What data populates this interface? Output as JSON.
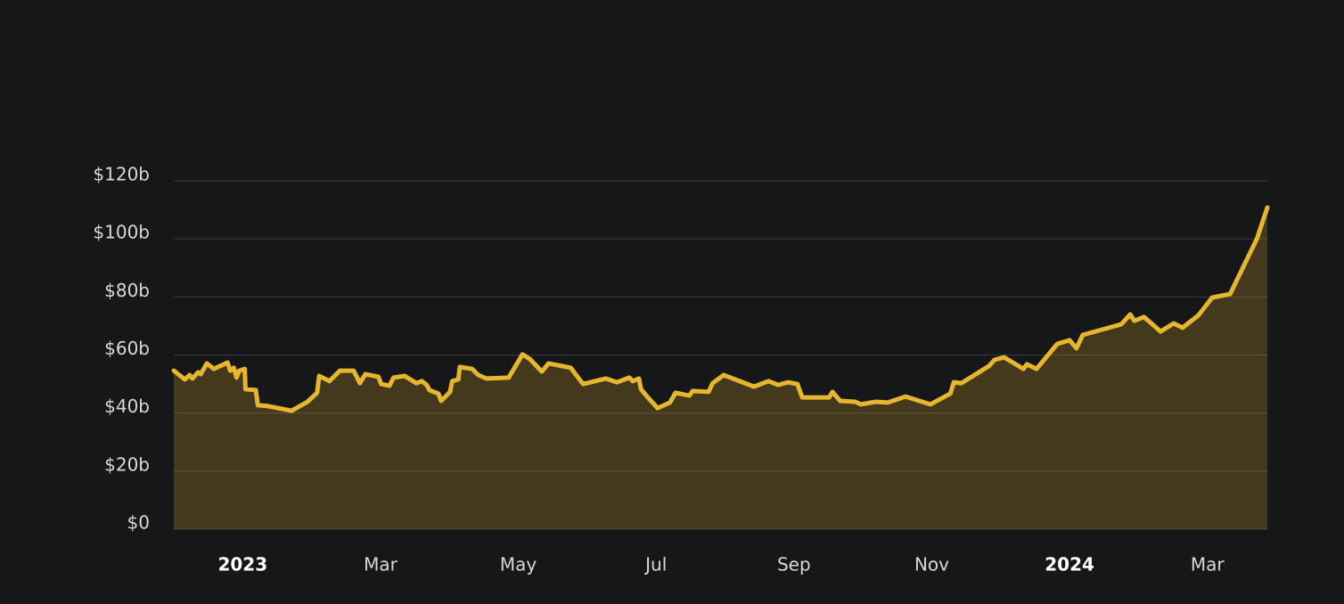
{
  "chart_data": {
    "type": "area",
    "series": [
      {
        "color": "#e6b62e",
        "x": [
          0.0,
          0.16,
          0.23,
          0.27,
          0.35,
          0.39,
          0.48,
          0.58,
          0.78,
          0.82,
          0.87,
          0.91,
          0.95,
          1.03,
          1.04,
          1.19,
          1.22,
          1.36,
          1.71,
          1.94,
          2.08,
          2.11,
          2.26,
          2.41,
          2.61,
          2.7,
          2.78,
          2.97,
          3.01,
          3.13,
          3.19,
          3.35,
          3.52,
          3.6,
          3.67,
          3.71,
          3.84,
          3.88,
          4.01,
          4.04,
          4.13,
          4.15,
          4.33,
          4.42,
          4.54,
          4.86,
          5.06,
          5.17,
          5.34,
          5.44,
          5.76,
          5.94,
          6.27,
          6.43,
          6.61,
          6.66,
          6.75,
          6.78,
          6.88,
          7.02,
          7.2,
          7.28,
          7.48,
          7.53,
          7.76,
          7.82,
          7.98,
          8.42,
          8.63,
          8.77,
          8.91,
          9.05,
          9.12,
          9.27,
          9.51,
          9.56,
          9.67,
          9.89,
          9.97,
          10.19,
          10.36,
          10.62,
          10.98,
          11.27,
          11.32,
          11.43,
          11.83,
          11.91,
          12.05,
          12.33,
          12.38,
          12.52,
          12.82,
          13.0,
          13.1,
          13.19,
          13.75,
          13.88,
          13.94,
          14.08,
          14.32,
          14.51,
          14.64,
          14.87,
          15.07,
          15.33,
          15.72,
          15.87
        ],
        "values": [
          54.6,
          51.6,
          53.1,
          51.9,
          54.0,
          53.4,
          57.1,
          55.2,
          57.4,
          54.6,
          55.6,
          52.2,
          54.6,
          55.2,
          48.2,
          47.9,
          42.7,
          42.4,
          40.8,
          43.9,
          47.0,
          52.8,
          51.0,
          54.6,
          54.6,
          50.3,
          53.4,
          52.5,
          50.0,
          49.4,
          52.2,
          52.8,
          50.3,
          51.0,
          49.7,
          47.9,
          46.7,
          44.2,
          47.3,
          51.0,
          51.6,
          55.9,
          55.2,
          53.1,
          51.9,
          52.2,
          60.2,
          58.6,
          54.3,
          57.1,
          55.6,
          50.0,
          51.9,
          50.6,
          52.2,
          51.0,
          51.9,
          48.2,
          45.4,
          41.7,
          43.6,
          47.0,
          46.0,
          47.6,
          47.3,
          50.3,
          53.1,
          49.1,
          51.0,
          49.7,
          50.6,
          50.0,
          45.4,
          45.4,
          45.4,
          47.3,
          44.2,
          43.9,
          43.0,
          43.9,
          43.6,
          45.7,
          43.0,
          46.7,
          50.6,
          50.3,
          56.2,
          58.3,
          59.2,
          55.2,
          56.8,
          55.2,
          63.8,
          65.1,
          62.3,
          66.9,
          70.6,
          74.0,
          71.8,
          73.1,
          68.1,
          70.9,
          69.4,
          73.7,
          79.8,
          81.0,
          100.1,
          110.8
        ]
      }
    ],
    "xlim": [
      0,
      15.87
    ],
    "xticks": [
      {
        "value": 1,
        "label": "2023"
      },
      {
        "value": 3,
        "label": "Mar"
      },
      {
        "value": 5,
        "label": "May"
      },
      {
        "value": 7,
        "label": "Jul"
      },
      {
        "value": 9,
        "label": "Sep"
      },
      {
        "value": 11,
        "label": "Nov"
      },
      {
        "value": 13,
        "label": "2024"
      },
      {
        "value": 15,
        "label": "Mar"
      }
    ],
    "ylim": [
      0,
      120
    ],
    "yticks": [
      {
        "value": 0,
        "label": "$0"
      },
      {
        "value": 20,
        "label": "$20b"
      },
      {
        "value": 40,
        "label": "$40b"
      },
      {
        "value": 60,
        "label": "$60b"
      },
      {
        "value": 80,
        "label": "$80b"
      },
      {
        "value": 100,
        "label": "$100b"
      },
      {
        "value": 120,
        "label": "$120b"
      }
    ],
    "grid": true
  }
}
